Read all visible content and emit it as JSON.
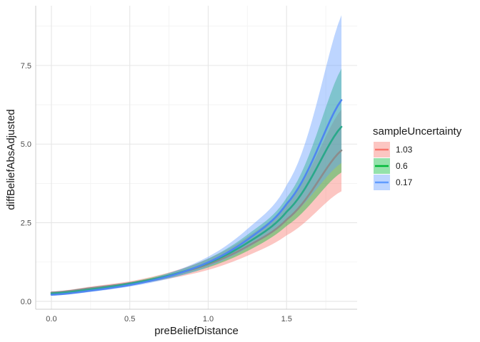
{
  "chart_data": {
    "type": "line",
    "xlabel": "preBeliefDistance",
    "ylabel": "diffBeliefAbsAdjusted",
    "xlim": [
      -0.1,
      1.95
    ],
    "ylim": [
      -0.25,
      9.4
    ],
    "x_ticks": [
      0.0,
      0.5,
      1.0,
      1.5
    ],
    "x_tick_labels": [
      "0.0",
      "0.5",
      "1.0",
      "1.5"
    ],
    "y_ticks": [
      0.0,
      2.5,
      5.0,
      7.5
    ],
    "y_tick_labels": [
      "0.0",
      "2.5",
      "5.0",
      "7.5"
    ],
    "grid": true,
    "legend": {
      "title": "sampleUncertainty",
      "placement": "right",
      "entries": [
        "1.03",
        "0.6",
        "0.17"
      ]
    },
    "x": [
      0.0,
      0.25,
      0.5,
      0.75,
      1.0,
      1.25,
      1.5,
      1.85
    ],
    "series": [
      {
        "name": "1.03",
        "color": "#F8766D",
        "values": [
          0.28,
          0.42,
          0.58,
          0.82,
          1.18,
          1.75,
          2.6,
          4.8
        ],
        "lower": [
          0.25,
          0.38,
          0.52,
          0.72,
          1.0,
          1.45,
          2.1,
          3.5
        ],
        "upper": [
          0.31,
          0.47,
          0.64,
          0.92,
          1.36,
          2.05,
          3.1,
          6.1
        ]
      },
      {
        "name": "0.6",
        "color": "#00BA38",
        "values": [
          0.25,
          0.38,
          0.56,
          0.82,
          1.22,
          1.86,
          2.85,
          5.55
        ],
        "lower": [
          0.23,
          0.35,
          0.51,
          0.74,
          1.08,
          1.6,
          2.4,
          4.1
        ],
        "upper": [
          0.27,
          0.41,
          0.61,
          0.9,
          1.36,
          2.12,
          3.3,
          7.4
        ]
      },
      {
        "name": "0.17",
        "color": "#619CFF",
        "values": [
          0.21,
          0.34,
          0.52,
          0.8,
          1.24,
          1.96,
          3.1,
          6.4
        ],
        "lower": [
          0.18,
          0.3,
          0.47,
          0.72,
          1.1,
          1.7,
          2.6,
          4.4
        ],
        "upper": [
          0.24,
          0.38,
          0.57,
          0.9,
          1.42,
          2.3,
          3.7,
          9.1
        ]
      }
    ]
  }
}
